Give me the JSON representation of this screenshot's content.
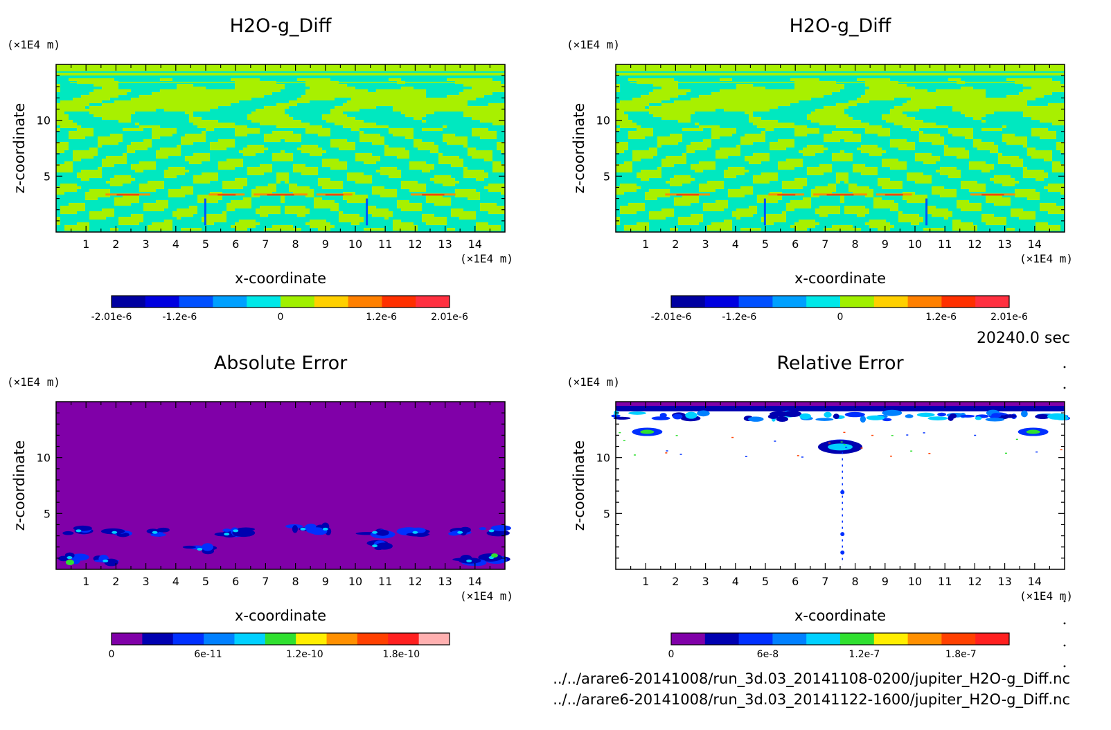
{
  "chart_data": [
    {
      "type": "heatmap",
      "title": "H2O-g_Diff",
      "xlabel": "x-coordinate",
      "ylabel": "z-coordinate",
      "x_unit": "(×1E4 m)",
      "y_unit": "(×1E4 m)",
      "xlim": [
        0,
        15
      ],
      "ylim": [
        0,
        15
      ],
      "x_ticks": [
        "1",
        "2",
        "3",
        "4",
        "5",
        "6",
        "7",
        "8",
        "9",
        "10",
        "11",
        "12",
        "13",
        "14"
      ],
      "y_ticks": [
        "5",
        "10"
      ],
      "colorbar": {
        "min": -2.01e-06,
        "max": 2.01e-06,
        "tick_labels": [
          "-2.01e-6",
          "-1.2e-6",
          "0",
          "1.2e-6",
          "2.01e-6"
        ],
        "tick_values": [
          -2.01e-06,
          -1.2e-06,
          0,
          1.2e-06,
          2.01e-06
        ],
        "colors": [
          "#0000a0",
          "#0000e0",
          "#0050ff",
          "#00a0ff",
          "#00e8e8",
          "#a0f000",
          "#ffd000",
          "#ff8000",
          "#ff3000",
          "#ff3040"
        ]
      },
      "pattern": "diff"
    },
    {
      "type": "heatmap",
      "title": "H2O-g_Diff",
      "xlabel": "x-coordinate",
      "ylabel": "z-coordinate",
      "x_unit": "(×1E4 m)",
      "y_unit": "(×1E4 m)",
      "xlim": [
        0,
        15
      ],
      "ylim": [
        0,
        15
      ],
      "x_ticks": [
        "1",
        "2",
        "3",
        "4",
        "5",
        "6",
        "7",
        "8",
        "9",
        "10",
        "11",
        "12",
        "13",
        "14"
      ],
      "y_ticks": [
        "5",
        "10"
      ],
      "colorbar": {
        "min": -2.01e-06,
        "max": 2.01e-06,
        "tick_labels": [
          "-2.01e-6",
          "-1.2e-6",
          "0",
          "1.2e-6",
          "2.01e-6"
        ],
        "tick_values": [
          -2.01e-06,
          -1.2e-06,
          0,
          1.2e-06,
          2.01e-06
        ],
        "colors": [
          "#0000a0",
          "#0000e0",
          "#0050ff",
          "#00a0ff",
          "#00e8e8",
          "#a0f000",
          "#ffd000",
          "#ff8000",
          "#ff3000",
          "#ff3040"
        ]
      },
      "pattern": "diff"
    },
    {
      "type": "heatmap",
      "title": "Absolute Error",
      "xlabel": "x-coordinate",
      "ylabel": "z-coordinate",
      "x_unit": "(×1E4 m)",
      "y_unit": "(×1E4 m)",
      "xlim": [
        0,
        15
      ],
      "ylim": [
        0,
        15
      ],
      "x_ticks": [
        "1",
        "2",
        "3",
        "4",
        "5",
        "6",
        "7",
        "8",
        "9",
        "10",
        "11",
        "12",
        "13",
        "14"
      ],
      "y_ticks": [
        "5",
        "10"
      ],
      "colorbar": {
        "min": 0,
        "max": 2.1e-10,
        "tick_labels": [
          "0",
          "6e-11",
          "1.2e-10",
          "1.8e-10"
        ],
        "tick_values": [
          0,
          6e-11,
          1.2e-10,
          1.8e-10
        ],
        "colors": [
          "#8000a8",
          "#0000b0",
          "#0030ff",
          "#0080ff",
          "#00d0ff",
          "#30e030",
          "#ffee00",
          "#ff9000",
          "#ff4000",
          "#ff2020",
          "#ffb0b0"
        ]
      },
      "pattern": "abs"
    },
    {
      "type": "heatmap",
      "title": "Relative Error",
      "xlabel": "x-coordinate",
      "ylabel": "z-coordinate",
      "x_unit": "(×1E4 m)",
      "y_unit": "(×1E4 m)",
      "xlim": [
        0,
        15
      ],
      "ylim": [
        0,
        15
      ],
      "x_ticks": [
        "1",
        "2",
        "3",
        "4",
        "5",
        "6",
        "7",
        "8",
        "9",
        "10",
        "11",
        "12",
        "13",
        "14"
      ],
      "y_ticks": [
        "5",
        "10"
      ],
      "colorbar": {
        "min": 0,
        "max": 2.1e-07,
        "tick_labels": [
          "0",
          "6e-8",
          "1.2e-7",
          "1.8e-7"
        ],
        "tick_values": [
          0,
          6e-08,
          1.2e-07,
          1.8e-07
        ],
        "colors": [
          "#8000a8",
          "#0000b0",
          "#0030ff",
          "#0080ff",
          "#00d0ff",
          "#30e030",
          "#ffee00",
          "#ff9000",
          "#ff4000",
          "#ff2020"
        ]
      },
      "pattern": "rel"
    }
  ],
  "time_label": "20240.0 sec",
  "files": [
    "../../arare6-20141008/run_3d.03_20141108-0200/jupiter_H2O-g_Diff.nc",
    "../../arare6-20141008/run_3d.03_20141122-1600/jupiter_H2O-g_Diff.nc"
  ]
}
